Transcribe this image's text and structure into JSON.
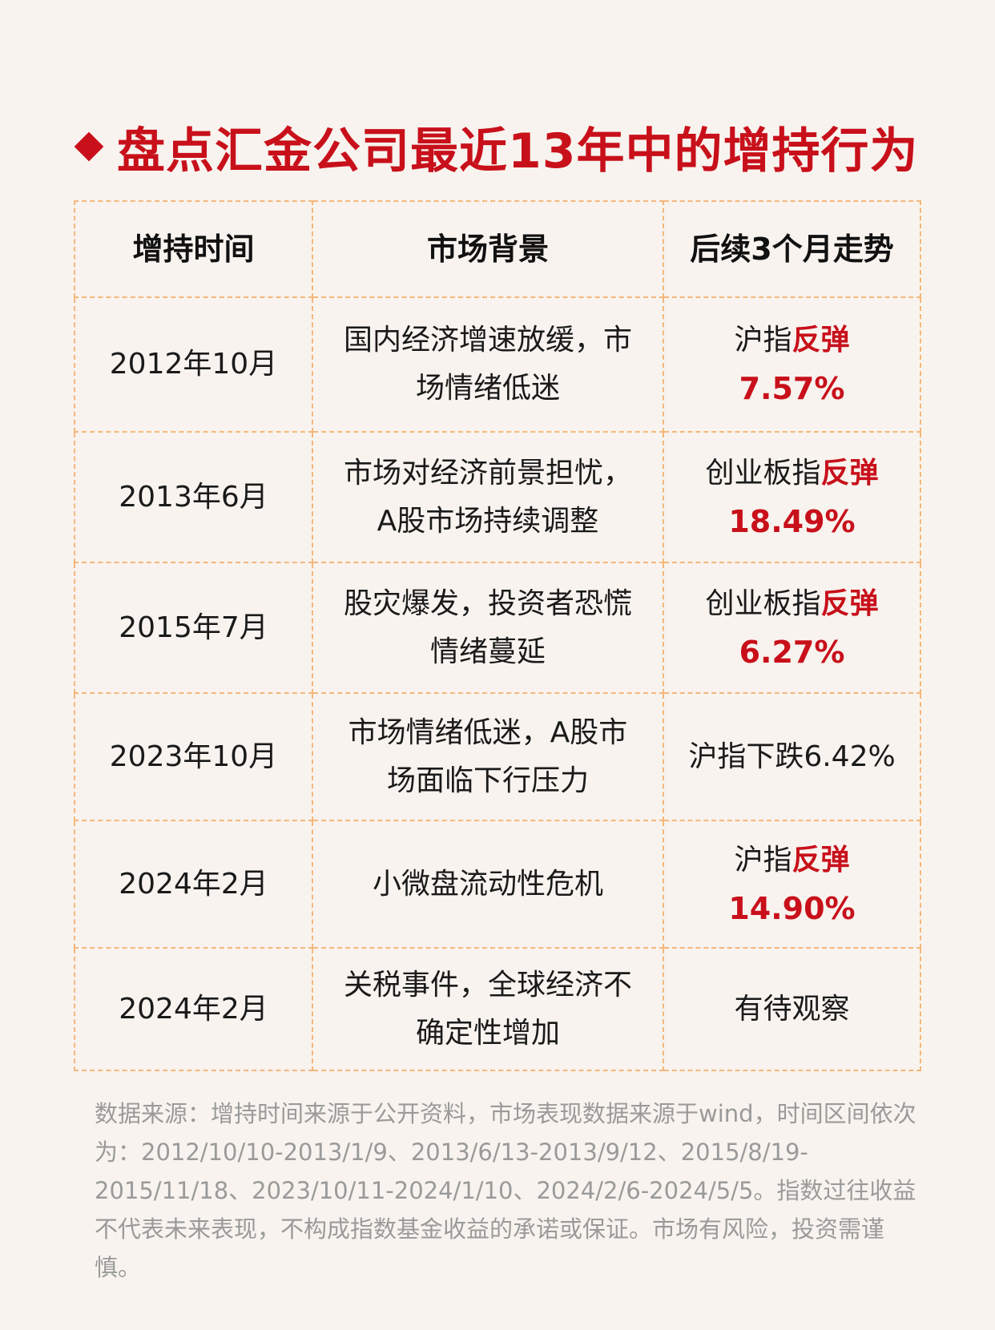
{
  "title": "盘点汇金公司最近13年中的增持行为",
  "colors": {
    "accent": "#c8101b",
    "border": "#f4b77a",
    "background": "#f8f3ee",
    "footnote": "#9a9a9a"
  },
  "table": {
    "headers": [
      "增持时间",
      "市场背景",
      "后续3个月走势"
    ],
    "rows": [
      {
        "time": "2012年10月",
        "background": [
          "国内经济增速放缓，市",
          "场情绪低迷"
        ],
        "trend_prefix": "沪指",
        "trend_keyword": "反弹",
        "trend_value": "7.57%"
      },
      {
        "time": "2013年6月",
        "background": [
          "市场对经济前景担忧，",
          "A股市场持续调整"
        ],
        "trend_prefix": "创业板指",
        "trend_keyword": "反弹",
        "trend_value": "18.49%"
      },
      {
        "time": "2015年7月",
        "background": [
          "股灾爆发，投资者恐慌",
          "情绪蔓延"
        ],
        "trend_prefix": "创业板指",
        "trend_keyword": "反弹",
        "trend_value": "6.27%"
      },
      {
        "time": "2023年10月",
        "background": [
          "市场情绪低迷，A股市",
          "场面临下行压力"
        ],
        "trend_text": "沪指下跌6.42%"
      },
      {
        "time": "2024年2月",
        "background": [
          "小微盘流动性危机"
        ],
        "trend_prefix": "沪指",
        "trend_keyword": "反弹",
        "trend_value": "14.90%"
      },
      {
        "time": "2024年2月",
        "background": [
          "关税事件，全球经济不",
          "确定性增加"
        ],
        "trend_text": "有待观察"
      }
    ]
  },
  "footnote": "数据来源：增持时间来源于公开资料，市场表现数据来源于wind，时间区间依次为：2012/10/10-2013/1/9、2013/6/13-2013/9/12、2015/8/19-2015/11/18、2023/10/11-2024/1/10、2024/2/6-2024/5/5。指数过往收益不代表未来表现，不构成指数基金收益的承诺或保证。市场有风险，投资需谨慎。"
}
